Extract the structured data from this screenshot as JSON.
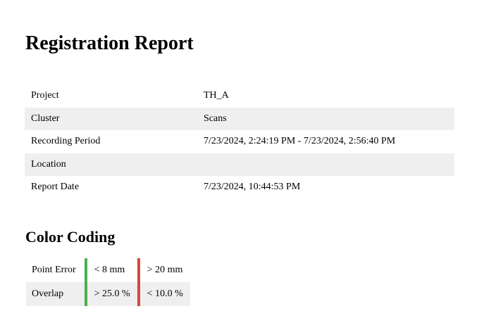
{
  "report": {
    "title": "Registration Report"
  },
  "info": {
    "rows": [
      {
        "key": "Project",
        "value": "TH_A"
      },
      {
        "key": "Cluster",
        "value": "Scans"
      },
      {
        "key": "Recording Period",
        "value": "7/23/2024, 2:24:19 PM - 7/23/2024, 2:56:40 PM"
      },
      {
        "key": "Location",
        "value": ""
      },
      {
        "key": "Report Date",
        "value": "7/23/2024, 10:44:53 PM"
      }
    ]
  },
  "color_coding": {
    "title": "Color Coding",
    "good_color": "#4caf50",
    "bad_color": "#d9463e",
    "rows": [
      {
        "label": "Point Error",
        "good": "< 8 mm",
        "bad": "> 20 mm"
      },
      {
        "label": "Overlap",
        "good": "> 25.0 %",
        "bad": "< 10.0 %"
      }
    ]
  }
}
